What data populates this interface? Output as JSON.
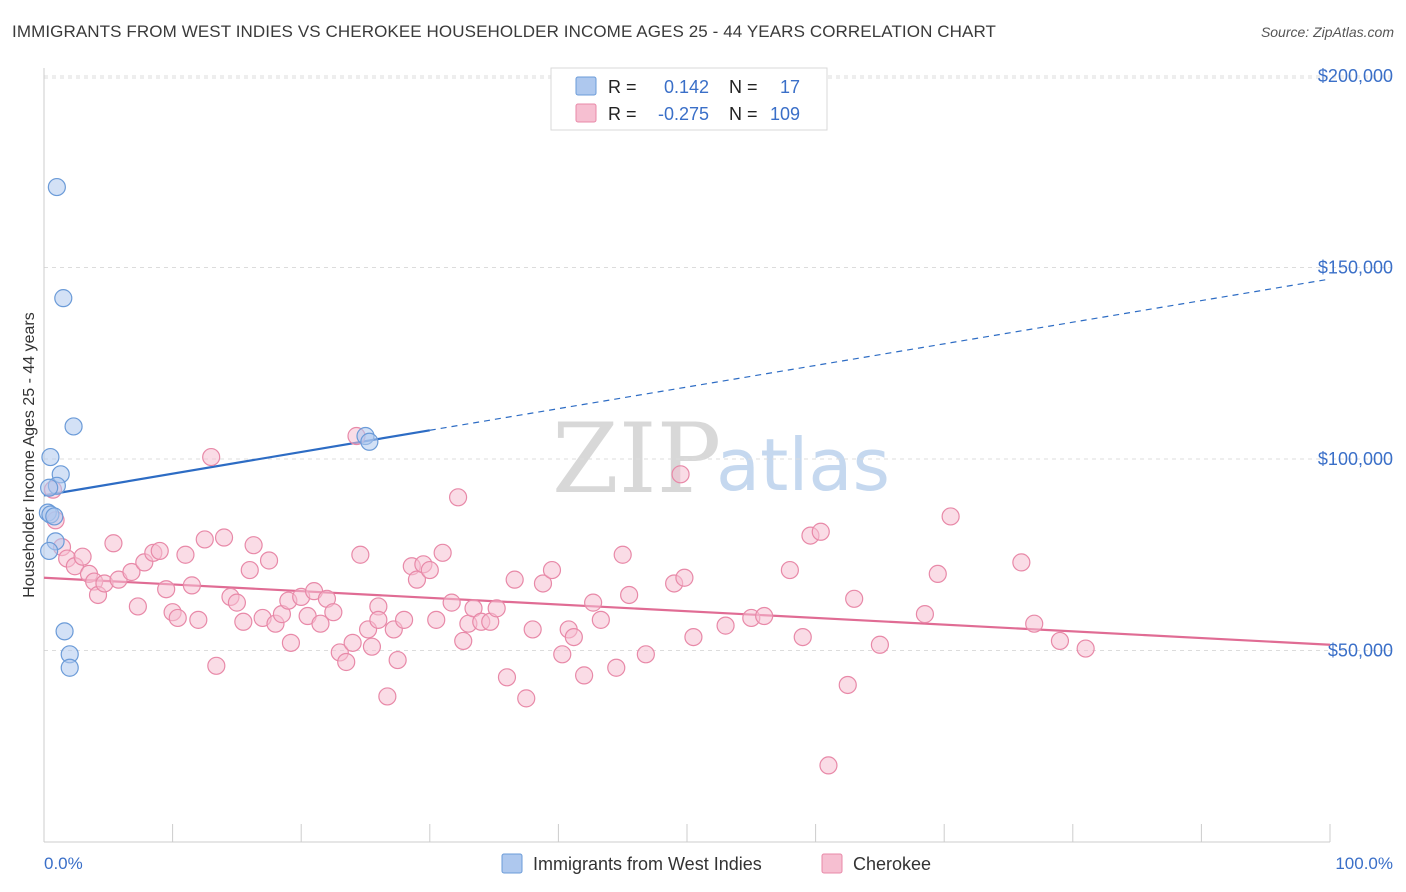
{
  "title": "IMMIGRANTS FROM WEST INDIES VS CHEROKEE HOUSEHOLDER INCOME AGES 25 - 44 YEARS CORRELATION CHART",
  "source": "Source: ZipAtlas.com",
  "watermark": {
    "zip": "ZIP",
    "atlas": "atlas"
  },
  "legend_top": {
    "rows": [
      {
        "r_label": "R =",
        "r_value": "0.142",
        "n_label": "N =",
        "n_value": "17",
        "color": "#aec8ee",
        "stroke": "#6b9bd8"
      },
      {
        "r_label": "R =",
        "r_value": "-0.275",
        "n_label": "N =",
        "n_value": "109",
        "color": "#f6bfd1",
        "stroke": "#e889a8"
      }
    ]
  },
  "legend_bottom": [
    {
      "label": "Immigrants from West Indies",
      "color": "#aec8ee",
      "stroke": "#6b9bd8"
    },
    {
      "label": "Cherokee",
      "color": "#f6bfd1",
      "stroke": "#e889a8"
    }
  ],
  "chart_data": {
    "type": "scatter",
    "title": "IMMIGRANTS FROM WEST INDIES VS CHEROKEE HOUSEHOLDER INCOME AGES 25 - 44 YEARS CORRELATION CHART",
    "xlabel": "",
    "ylabel": "Householder Income Ages 25 - 44 years",
    "xlim": [
      0,
      100
    ],
    "ylim": [
      0,
      210000
    ],
    "x_tick_labels": [
      "0.0%",
      "100.0%"
    ],
    "y_ticks": [
      50000,
      100000,
      150000,
      200000
    ],
    "y_tick_labels": [
      "$50,000",
      "$100,000",
      "$150,000",
      "$200,000"
    ],
    "grid": true,
    "legend_placement": "top-center",
    "series": [
      {
        "name": "Immigrants from West Indies",
        "color": "#6b9bd8",
        "fill": "#aec8ee",
        "trend": {
          "x0": 0,
          "y0": 90500,
          "x1": 30,
          "y1": 107500,
          "dash_to_x": 100,
          "dash_to_y": 147000,
          "color": "#2d6cc4"
        },
        "points": [
          [
            1.0,
            171000
          ],
          [
            1.5,
            142000
          ],
          [
            2.3,
            108500
          ],
          [
            0.5,
            100500
          ],
          [
            1.3,
            96000
          ],
          [
            1.0,
            93000
          ],
          [
            0.4,
            92500
          ],
          [
            0.3,
            86000
          ],
          [
            0.5,
            85500
          ],
          [
            0.8,
            85000
          ],
          [
            0.9,
            78500
          ],
          [
            0.4,
            76000
          ],
          [
            1.6,
            55000
          ],
          [
            2.0,
            49000
          ],
          [
            2.0,
            45500
          ],
          [
            25.0,
            106000
          ],
          [
            25.3,
            104500
          ]
        ]
      },
      {
        "name": "Cherokee",
        "color": "#e889a8",
        "fill": "#f6bfd1",
        "trend": {
          "x0": 0,
          "y0": 69000,
          "x1": 100,
          "y1": 51500,
          "color": "#e06c94"
        },
        "points": [
          [
            0.7,
            92000
          ],
          [
            0.9,
            84000
          ],
          [
            1.4,
            77000
          ],
          [
            1.8,
            74000
          ],
          [
            2.4,
            72000
          ],
          [
            3.0,
            74500
          ],
          [
            3.5,
            70000
          ],
          [
            3.9,
            68000
          ],
          [
            4.2,
            64500
          ],
          [
            4.7,
            67500
          ],
          [
            5.4,
            78000
          ],
          [
            5.8,
            68500
          ],
          [
            6.8,
            70500
          ],
          [
            7.3,
            61500
          ],
          [
            7.8,
            73000
          ],
          [
            8.5,
            75500
          ],
          [
            9.0,
            76000
          ],
          [
            9.5,
            66000
          ],
          [
            10.0,
            60000
          ],
          [
            10.4,
            58500
          ],
          [
            11.0,
            75000
          ],
          [
            11.5,
            67000
          ],
          [
            12.0,
            58000
          ],
          [
            12.5,
            79000
          ],
          [
            13.0,
            100500
          ],
          [
            13.4,
            46000
          ],
          [
            14.0,
            79500
          ],
          [
            14.5,
            64000
          ],
          [
            15.0,
            62500
          ],
          [
            15.5,
            57500
          ],
          [
            16.0,
            71000
          ],
          [
            16.3,
            77500
          ],
          [
            17.0,
            58500
          ],
          [
            17.5,
            73500
          ],
          [
            18.0,
            57000
          ],
          [
            18.5,
            59500
          ],
          [
            19.0,
            63000
          ],
          [
            19.2,
            52000
          ],
          [
            20.0,
            64000
          ],
          [
            20.5,
            59000
          ],
          [
            21.0,
            65500
          ],
          [
            21.5,
            57000
          ],
          [
            22.0,
            63500
          ],
          [
            22.5,
            60000
          ],
          [
            23.0,
            49500
          ],
          [
            23.5,
            47000
          ],
          [
            24.0,
            52000
          ],
          [
            24.6,
            75000
          ],
          [
            24.3,
            106000
          ],
          [
            25.2,
            55500
          ],
          [
            25.5,
            51000
          ],
          [
            26.0,
            61500
          ],
          [
            26.7,
            38000
          ],
          [
            27.2,
            55500
          ],
          [
            27.5,
            47500
          ],
          [
            28.0,
            58000
          ],
          [
            28.6,
            72000
          ],
          [
            29.0,
            68500
          ],
          [
            29.5,
            72500
          ],
          [
            30.0,
            71000
          ],
          [
            30.5,
            58000
          ],
          [
            31.0,
            75500
          ],
          [
            31.7,
            62500
          ],
          [
            32.2,
            90000
          ],
          [
            32.6,
            52500
          ],
          [
            33.0,
            57000
          ],
          [
            33.4,
            61000
          ],
          [
            34.0,
            57500
          ],
          [
            34.7,
            57500
          ],
          [
            35.2,
            61000
          ],
          [
            36.0,
            43000
          ],
          [
            36.6,
            68500
          ],
          [
            37.5,
            37500
          ],
          [
            38.0,
            55500
          ],
          [
            38.8,
            67500
          ],
          [
            39.5,
            71000
          ],
          [
            40.3,
            49000
          ],
          [
            40.8,
            55500
          ],
          [
            41.2,
            53500
          ],
          [
            42.0,
            43500
          ],
          [
            42.7,
            62500
          ],
          [
            43.3,
            58000
          ],
          [
            44.5,
            45500
          ],
          [
            45.0,
            75000
          ],
          [
            45.5,
            64500
          ],
          [
            46.8,
            49000
          ],
          [
            49.0,
            67500
          ],
          [
            49.5,
            96000
          ],
          [
            49.8,
            69000
          ],
          [
            50.5,
            53500
          ],
          [
            53.0,
            56500
          ],
          [
            55.0,
            58500
          ],
          [
            56.0,
            59000
          ],
          [
            58.0,
            71000
          ],
          [
            59.0,
            53500
          ],
          [
            59.6,
            80000
          ],
          [
            60.4,
            81000
          ],
          [
            61.0,
            20000
          ],
          [
            62.5,
            41000
          ],
          [
            63.0,
            63500
          ],
          [
            65.0,
            51500
          ],
          [
            68.5,
            59500
          ],
          [
            69.5,
            70000
          ],
          [
            70.5,
            85000
          ],
          [
            76.0,
            73000
          ],
          [
            77.0,
            57000
          ],
          [
            79.0,
            52500
          ],
          [
            81.0,
            50500
          ],
          [
            26.0,
            58000
          ]
        ]
      }
    ]
  }
}
